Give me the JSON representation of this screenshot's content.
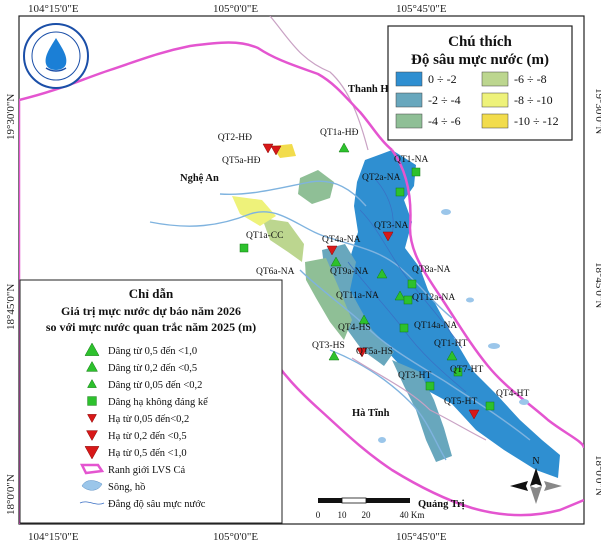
{
  "axes": {
    "top": [
      "104°15'0\"E",
      "105°0'0\"E",
      "105°45'0\"E"
    ],
    "bottom": [
      "104°15'0\"E",
      "105°0'0\"E",
      "105°45'0\"E"
    ],
    "left": [
      "19°30'0\"N",
      "18°45'0\"N",
      "18°0'0\"N"
    ],
    "right": [
      "19°30'0\"N",
      "18°45'0\"N",
      "18°0'0\"N"
    ]
  },
  "places": {
    "thanh_hoa": "Thanh H",
    "nghe_an": "Nghệ An",
    "ha_tinh": "Hà Tĩnh",
    "quang_tri": "Quảng Trị"
  },
  "depth_legend": {
    "title": "Chú thích",
    "subtitle": "Độ sâu mực nước (m)",
    "classes": [
      {
        "label": "0 ÷ -2",
        "color": "#2f8fd1"
      },
      {
        "label": "-6 ÷ -8",
        "color": "#bcd68f"
      },
      {
        "label": "-2 ÷ -4",
        "color": "#68a7bd"
      },
      {
        "label": "-8 ÷ -10",
        "color": "#eef27a"
      },
      {
        "label": "-4 ÷ -6",
        "color": "#8fbf96"
      },
      {
        "label": "-10 ÷ -12",
        "color": "#f2dc4c"
      }
    ]
  },
  "guide": {
    "title": "Chỉ dẫn",
    "subtitle1": "Giá trị mực nước dự báo năm 2026",
    "subtitle2": "so với mực nước quan trắc năm 2025 (m)",
    "items": [
      {
        "label": "Dâng từ 0,5 đến <1,0",
        "symbol": "up",
        "size": "large"
      },
      {
        "label": "Dâng từ 0,2 đến <0,5",
        "symbol": "up",
        "size": "medium"
      },
      {
        "label": "Dâng từ 0,05 đến <0,2",
        "symbol": "up",
        "size": "small"
      },
      {
        "label": "Dâng hạ không đáng kể",
        "symbol": "square",
        "size": "medium"
      },
      {
        "label": "Hạ từ 0,05 đến<0,2",
        "symbol": "down",
        "size": "small"
      },
      {
        "label": "Hạ từ 0,2 đến <0,5",
        "symbol": "down",
        "size": "medium"
      },
      {
        "label": "Hạ từ 0,5 đến <1,0",
        "symbol": "down",
        "size": "large"
      },
      {
        "label": "Ranh giới LVS Cả",
        "symbol": "boundary"
      },
      {
        "label": "Sông, hồ",
        "symbol": "water"
      },
      {
        "label": "Đẳng độ sâu mực nước",
        "symbol": "isoline"
      }
    ]
  },
  "stations": [
    {
      "name": "QT2-HĐ",
      "symbol": "down"
    },
    {
      "name": "QT1a-HĐ",
      "symbol": "up"
    },
    {
      "name": "QT5a-HĐ",
      "symbol": "down"
    },
    {
      "name": "QT1-NA",
      "symbol": "square"
    },
    {
      "name": "QT2a-NA",
      "symbol": "square"
    },
    {
      "name": "QT3-NA",
      "symbol": "down"
    },
    {
      "name": "QT1a-CC",
      "symbol": "square"
    },
    {
      "name": "QT4a-NA",
      "symbol": "down"
    },
    {
      "name": "QT6a-NA",
      "symbol": "up"
    },
    {
      "name": "QT9a-NA",
      "symbol": "up"
    },
    {
      "name": "QT8a-NA",
      "symbol": "square"
    },
    {
      "name": "QT11a-NA",
      "symbol": "up"
    },
    {
      "name": "QT12a-NA",
      "symbol": "square"
    },
    {
      "name": "QT4-HS",
      "symbol": "up"
    },
    {
      "name": "QT14a-NA",
      "symbol": "square"
    },
    {
      "name": "QT3-HS",
      "symbol": "up"
    },
    {
      "name": "QT5a-HS",
      "symbol": "down"
    },
    {
      "name": "QT1-HT",
      "symbol": "up"
    },
    {
      "name": "QT7-HT",
      "symbol": "square"
    },
    {
      "name": "QT3-HT",
      "symbol": "square"
    },
    {
      "name": "QT4-HT",
      "symbol": "square"
    },
    {
      "name": "QT5-HT",
      "symbol": "down"
    }
  ],
  "scale_bar": {
    "ticks": [
      "0",
      "10",
      "20",
      "40 Km"
    ]
  },
  "north": "N",
  "colors": {
    "boundary": "#e455d0",
    "up": "#2dc12d",
    "down": "#d81818",
    "square": "#2dc12d",
    "water": "#9bc6ea",
    "frame": "#333333"
  }
}
